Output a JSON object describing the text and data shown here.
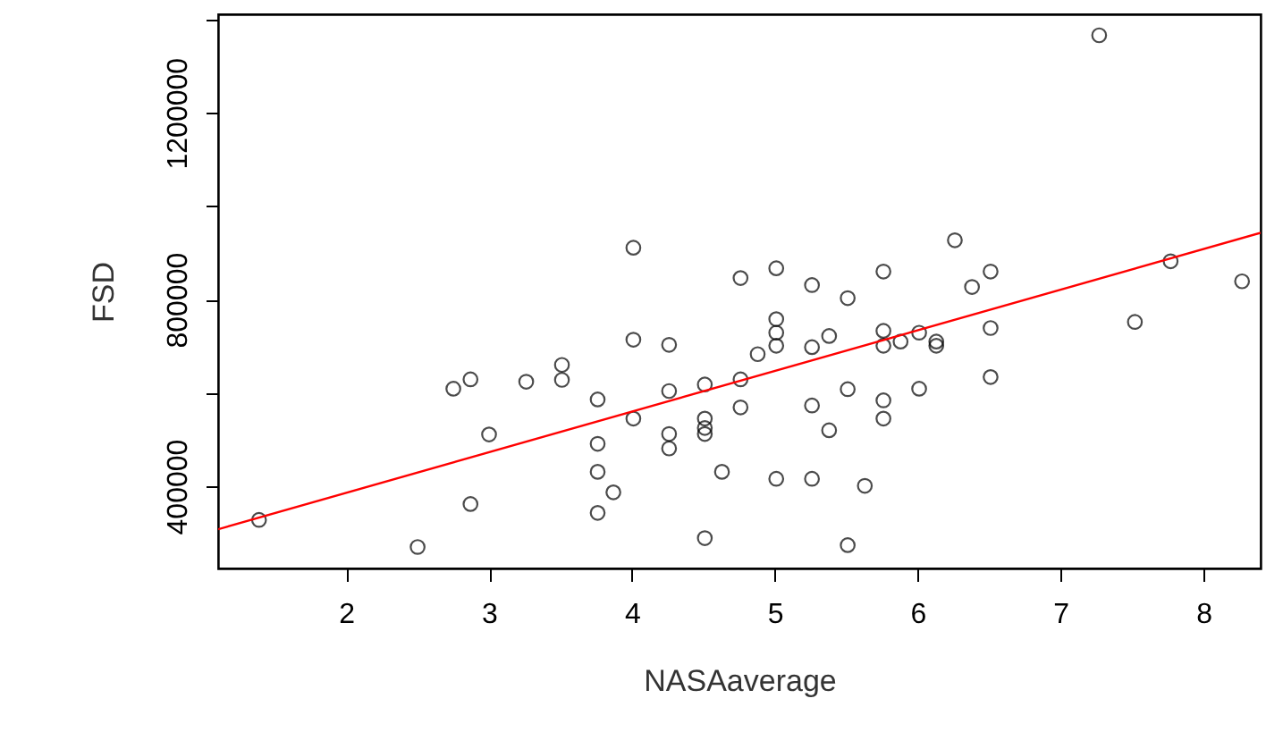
{
  "chart_data": {
    "type": "scatter",
    "xlabel": "NASAaverage",
    "ylabel": "FSD",
    "xlim": [
      1.104,
      8.4
    ],
    "ylim": [
      224000,
      1411000
    ],
    "xticks": [
      2,
      3,
      4,
      5,
      6,
      7,
      8
    ],
    "yticks": [
      400000,
      {
        "value": 600000,
        "label": null
      },
      800000,
      {
        "value": 1000000,
        "label": null
      },
      1200000,
      {
        "value": 1400000,
        "label": null
      }
    ],
    "grid": false,
    "series": [
      {
        "color": "#000000",
        "marker": "circle",
        "x": [
          1.39,
          2.5,
          2.75,
          2.87,
          2.87,
          3.0,
          3.26,
          3.51,
          3.51,
          3.76,
          3.76,
          3.76,
          3.76,
          3.87,
          4.01,
          4.01,
          4.01,
          4.26,
          4.26,
          4.26,
          4.26,
          4.51,
          4.51,
          4.51,
          4.51,
          4.51,
          4.63,
          4.76,
          4.76,
          4.76,
          4.88,
          5.01,
          5.01,
          5.01,
          5.01,
          5.01,
          5.26,
          5.26,
          5.26,
          5.26,
          5.38,
          5.38,
          5.51,
          5.51,
          5.51,
          5.63,
          5.76,
          5.76,
          5.76,
          5.76,
          5.76,
          5.88,
          6.01,
          6.01,
          6.13,
          6.13,
          6.26,
          6.38,
          6.51,
          6.51,
          6.51,
          7.27,
          7.52,
          7.77,
          8.27
        ],
        "values": [
          328000,
          270000,
          609000,
          629000,
          362000,
          511000,
          624000,
          660000,
          628000,
          586000,
          491000,
          431000,
          343000,
          387000,
          911000,
          714000,
          545000,
          703000,
          604000,
          512000,
          481000,
          618000,
          545000,
          525000,
          512000,
          289000,
          431000,
          846000,
          629000,
          569000,
          683000,
          867000,
          758000,
          729000,
          701000,
          416000,
          831000,
          698000,
          573000,
          416000,
          722000,
          520000,
          803000,
          608000,
          274000,
          401000,
          860000,
          733000,
          701000,
          584000,
          545000,
          710000,
          729000,
          609000,
          710000,
          701000,
          927000,
          827000,
          860000,
          739000,
          634000,
          1366000,
          752000,
          882000,
          839000
        ]
      },
      {
        "type": "line",
        "color": "#ff0000",
        "x": [
          1.104,
          8.4
        ],
        "values": [
          308000,
          943000
        ],
        "marker": "none"
      }
    ]
  }
}
